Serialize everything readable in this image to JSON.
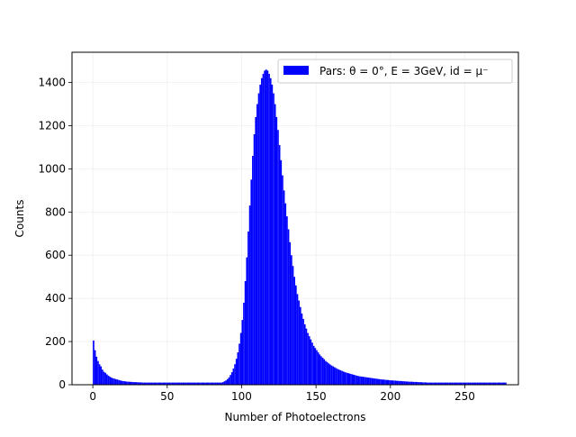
{
  "chart_data": {
    "type": "bar",
    "xlabel": "Number of Photoelectrons",
    "ylabel": "Counts",
    "xlim": [
      -14,
      286
    ],
    "ylim": [
      0,
      1540
    ],
    "xticks": [
      0,
      50,
      100,
      150,
      200,
      250
    ],
    "yticks": [
      0,
      200,
      400,
      600,
      800,
      1000,
      1200,
      1400
    ],
    "grid": true,
    "legend_position": "top-right",
    "bar_color": "#0000ff",
    "series": [
      {
        "name": "Pars: θ = 0°, E = 3GeV, id = μ⁻",
        "bin_width": 1,
        "bin_start": 0,
        "values": [
          205,
          160,
          130,
          110,
          95,
          85,
          70,
          60,
          55,
          48,
          42,
          37,
          33,
          30,
          28,
          26,
          24,
          22,
          20,
          18,
          17,
          16,
          15,
          14,
          14,
          13,
          13,
          12,
          12,
          12,
          11,
          11,
          11,
          10,
          10,
          10,
          10,
          10,
          10,
          10,
          10,
          10,
          10,
          10,
          10,
          10,
          10,
          10,
          10,
          10,
          10,
          10,
          10,
          10,
          10,
          10,
          10,
          10,
          10,
          10,
          10,
          10,
          10,
          10,
          10,
          10,
          10,
          10,
          10,
          10,
          10,
          10,
          10,
          10,
          10,
          10,
          10,
          10,
          10,
          10,
          10,
          10,
          10,
          10,
          10,
          10,
          10,
          12,
          16,
          20,
          26,
          34,
          45,
          58,
          75,
          95,
          120,
          150,
          190,
          240,
          300,
          380,
          480,
          590,
          710,
          830,
          950,
          1060,
          1160,
          1240,
          1300,
          1350,
          1390,
          1420,
          1440,
          1455,
          1460,
          1455,
          1440,
          1420,
          1390,
          1350,
          1300,
          1240,
          1180,
          1110,
          1040,
          970,
          900,
          840,
          780,
          720,
          660,
          600,
          550,
          500,
          460,
          420,
          390,
          360,
          330,
          305,
          280,
          260,
          240,
          225,
          210,
          195,
          180,
          170,
          160,
          150,
          140,
          132,
          125,
          118,
          110,
          105,
          99,
          94,
          89,
          85,
          81,
          77,
          73,
          70,
          67,
          64,
          61,
          58,
          56,
          54,
          52,
          50,
          48,
          46,
          44,
          42,
          40,
          39,
          38,
          37,
          36,
          35,
          34,
          33,
          32,
          31,
          30,
          29,
          28,
          27,
          26,
          25,
          24,
          24,
          23,
          22,
          22,
          21,
          20,
          20,
          19,
          19,
          18,
          18,
          17,
          17,
          16,
          16,
          15,
          15,
          14,
          14,
          14,
          13,
          13,
          13,
          12,
          12,
          12,
          11,
          11,
          11,
          10,
          10,
          10,
          10,
          10,
          10,
          10,
          10,
          10,
          10,
          10,
          10,
          10,
          10,
          10,
          10,
          10,
          10,
          10,
          10,
          10,
          10,
          10,
          10,
          10,
          10,
          10,
          10,
          10,
          10,
          10,
          10,
          10,
          10,
          10,
          10,
          10,
          10,
          10,
          10,
          10,
          10,
          10,
          10,
          10,
          10,
          10,
          10,
          10,
          10,
          10,
          10,
          10,
          10
        ]
      }
    ]
  }
}
